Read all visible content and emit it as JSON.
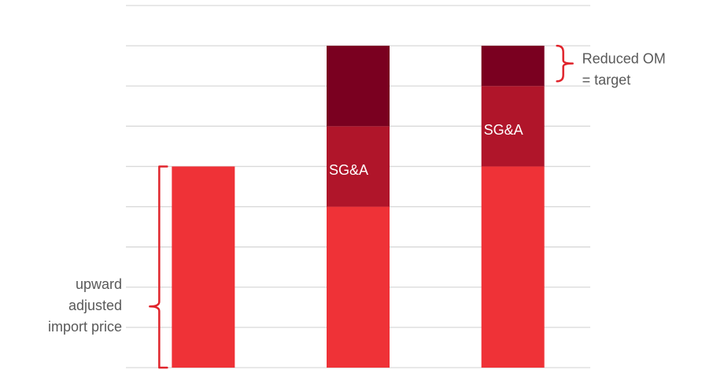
{
  "chart_data": {
    "type": "stacked_bar",
    "categories": [
      null,
      null,
      null
    ],
    "series": [
      {
        "color": "#ef3237",
        "values": [
          5,
          4,
          5
        ]
      },
      {
        "name": "SG&A",
        "color": "#b0152a",
        "values": [
          null,
          2,
          2
        ]
      },
      {
        "color": "#7a0020",
        "values": [
          null,
          2,
          1
        ]
      }
    ],
    "ylim": [
      0,
      9
    ],
    "yticks": [
      0,
      1,
      2,
      3,
      4,
      5,
      6,
      7,
      8,
      9
    ],
    "grid": true,
    "tick_labels": false,
    "annotations": [
      {
        "lines": [
          "upward",
          "adjusted",
          "import price"
        ]
      },
      {
        "lines": [
          "Reduced OM",
          "= target"
        ]
      }
    ]
  }
}
